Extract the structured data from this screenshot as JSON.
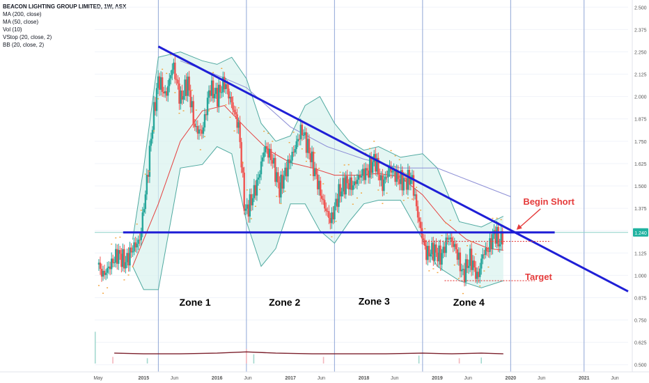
{
  "chart_data": {
    "type": "candlestick",
    "title": "BEACON LIGHTING GROUP LIMITED, 1W, ASX",
    "indicators": [
      "MA (200, close)",
      "MA (50, close)",
      "Vol (10)",
      "VStop (20, close, 2)",
      "BB (20, close, 2)"
    ],
    "y_axis": {
      "ticks": [
        "2.500",
        "2.375",
        "2.250",
        "2.125",
        "2.000",
        "1.875",
        "1.750",
        "1.625",
        "1.500",
        "1.375",
        "1.250",
        "1.125",
        "1.000",
        "0.875",
        "0.750",
        "0.625",
        "0.500"
      ],
      "range": [
        0.46,
        2.54
      ]
    },
    "x_axis": {
      "ticks": [
        "May",
        "2015",
        "Jun",
        "2016",
        "Jun",
        "2017",
        "Jun",
        "2018",
        "Jun",
        "2019",
        "Jun",
        "2020",
        "Jun",
        "2021",
        "Jun"
      ],
      "range": [
        2014.333,
        2021.6
      ]
    },
    "price_marker": {
      "value": 1.24,
      "label": "1.240"
    },
    "price_series": [
      {
        "t": 2014.37,
        "v": 1.06
      },
      {
        "t": 2014.45,
        "v": 1.0
      },
      {
        "t": 2014.55,
        "v": 1.06
      },
      {
        "t": 2014.65,
        "v": 1.12
      },
      {
        "t": 2014.75,
        "v": 1.07
      },
      {
        "t": 2014.85,
        "v": 1.15
      },
      {
        "t": 2014.95,
        "v": 1.2
      },
      {
        "t": 2015.05,
        "v": 1.55
      },
      {
        "t": 2015.12,
        "v": 1.85
      },
      {
        "t": 2015.2,
        "v": 2.1
      },
      {
        "t": 2015.3,
        "v": 2.0
      },
      {
        "t": 2015.4,
        "v": 2.18
      },
      {
        "t": 2015.5,
        "v": 1.98
      },
      {
        "t": 2015.6,
        "v": 2.08
      },
      {
        "t": 2015.7,
        "v": 1.82
      },
      {
        "t": 2015.8,
        "v": 1.8
      },
      {
        "t": 2015.9,
        "v": 2.05
      },
      {
        "t": 2016.0,
        "v": 2.0
      },
      {
        "t": 2016.1,
        "v": 2.08
      },
      {
        "t": 2016.2,
        "v": 1.96
      },
      {
        "t": 2016.3,
        "v": 1.82
      },
      {
        "t": 2016.38,
        "v": 1.35
      },
      {
        "t": 2016.45,
        "v": 1.4
      },
      {
        "t": 2016.55,
        "v": 1.52
      },
      {
        "t": 2016.65,
        "v": 1.72
      },
      {
        "t": 2016.75,
        "v": 1.65
      },
      {
        "t": 2016.85,
        "v": 1.48
      },
      {
        "t": 2016.95,
        "v": 1.6
      },
      {
        "t": 2017.05,
        "v": 1.7
      },
      {
        "t": 2017.15,
        "v": 1.82
      },
      {
        "t": 2017.25,
        "v": 1.7
      },
      {
        "t": 2017.35,
        "v": 1.55
      },
      {
        "t": 2017.45,
        "v": 1.4
      },
      {
        "t": 2017.55,
        "v": 1.3
      },
      {
        "t": 2017.65,
        "v": 1.45
      },
      {
        "t": 2017.75,
        "v": 1.52
      },
      {
        "t": 2017.85,
        "v": 1.5
      },
      {
        "t": 2017.95,
        "v": 1.56
      },
      {
        "t": 2018.05,
        "v": 1.58
      },
      {
        "t": 2018.15,
        "v": 1.65
      },
      {
        "t": 2018.25,
        "v": 1.5
      },
      {
        "t": 2018.35,
        "v": 1.6
      },
      {
        "t": 2018.45,
        "v": 1.55
      },
      {
        "t": 2018.55,
        "v": 1.52
      },
      {
        "t": 2018.65,
        "v": 1.55
      },
      {
        "t": 2018.75,
        "v": 1.3
      },
      {
        "t": 2018.85,
        "v": 1.12
      },
      {
        "t": 2018.95,
        "v": 1.14
      },
      {
        "t": 2019.05,
        "v": 1.1
      },
      {
        "t": 2019.15,
        "v": 1.22
      },
      {
        "t": 2019.25,
        "v": 1.15
      },
      {
        "t": 2019.35,
        "v": 1.0
      },
      {
        "t": 2019.45,
        "v": 1.1
      },
      {
        "t": 2019.55,
        "v": 0.98
      },
      {
        "t": 2019.62,
        "v": 1.12
      },
      {
        "t": 2019.7,
        "v": 1.15
      },
      {
        "t": 2019.78,
        "v": 1.24
      },
      {
        "t": 2019.85,
        "v": 1.18
      },
      {
        "t": 2019.9,
        "v": 1.24
      }
    ],
    "bollinger_upper": [
      {
        "t": 2014.85,
        "v": 1.2
      },
      {
        "t": 2015.0,
        "v": 1.6
      },
      {
        "t": 2015.2,
        "v": 2.22
      },
      {
        "t": 2015.5,
        "v": 2.25
      },
      {
        "t": 2015.8,
        "v": 2.2
      },
      {
        "t": 2016.0,
        "v": 2.18
      },
      {
        "t": 2016.2,
        "v": 2.22
      },
      {
        "t": 2016.4,
        "v": 2.1
      },
      {
        "t": 2016.6,
        "v": 1.85
      },
      {
        "t": 2016.8,
        "v": 1.75
      },
      {
        "t": 2017.0,
        "v": 1.78
      },
      {
        "t": 2017.2,
        "v": 1.95
      },
      {
        "t": 2017.4,
        "v": 2.0
      },
      {
        "t": 2017.6,
        "v": 1.85
      },
      {
        "t": 2017.8,
        "v": 1.75
      },
      {
        "t": 2018.0,
        "v": 1.7
      },
      {
        "t": 2018.2,
        "v": 1.72
      },
      {
        "t": 2018.5,
        "v": 1.66
      },
      {
        "t": 2018.8,
        "v": 1.68
      },
      {
        "t": 2019.0,
        "v": 1.6
      },
      {
        "t": 2019.3,
        "v": 1.3
      },
      {
        "t": 2019.6,
        "v": 1.27
      },
      {
        "t": 2019.9,
        "v": 1.33
      }
    ],
    "bollinger_lower": [
      {
        "t": 2014.85,
        "v": 1.05
      },
      {
        "t": 2015.0,
        "v": 0.92
      },
      {
        "t": 2015.2,
        "v": 0.92
      },
      {
        "t": 2015.5,
        "v": 1.6
      },
      {
        "t": 2015.8,
        "v": 1.62
      },
      {
        "t": 2016.0,
        "v": 1.72
      },
      {
        "t": 2016.2,
        "v": 1.68
      },
      {
        "t": 2016.4,
        "v": 1.3
      },
      {
        "t": 2016.6,
        "v": 1.05
      },
      {
        "t": 2016.8,
        "v": 1.15
      },
      {
        "t": 2017.0,
        "v": 1.4
      },
      {
        "t": 2017.2,
        "v": 1.4
      },
      {
        "t": 2017.4,
        "v": 1.25
      },
      {
        "t": 2017.6,
        "v": 1.18
      },
      {
        "t": 2017.8,
        "v": 1.3
      },
      {
        "t": 2018.0,
        "v": 1.4
      },
      {
        "t": 2018.2,
        "v": 1.42
      },
      {
        "t": 2018.5,
        "v": 1.42
      },
      {
        "t": 2018.8,
        "v": 1.2
      },
      {
        "t": 2019.0,
        "v": 1.05
      },
      {
        "t": 2019.3,
        "v": 0.97
      },
      {
        "t": 2019.6,
        "v": 0.93
      },
      {
        "t": 2019.9,
        "v": 0.97
      }
    ],
    "ma50": [
      {
        "t": 2014.85,
        "v": 1.05
      },
      {
        "t": 2015.2,
        "v": 1.4
      },
      {
        "t": 2015.5,
        "v": 1.75
      },
      {
        "t": 2015.8,
        "v": 1.92
      },
      {
        "t": 2016.1,
        "v": 1.95
      },
      {
        "t": 2016.4,
        "v": 1.82
      },
      {
        "t": 2016.7,
        "v": 1.7
      },
      {
        "t": 2017.0,
        "v": 1.63
      },
      {
        "t": 2017.3,
        "v": 1.6
      },
      {
        "t": 2017.6,
        "v": 1.56
      },
      {
        "t": 2017.9,
        "v": 1.56
      },
      {
        "t": 2018.2,
        "v": 1.57
      },
      {
        "t": 2018.5,
        "v": 1.55
      },
      {
        "t": 2018.8,
        "v": 1.45
      },
      {
        "t": 2019.1,
        "v": 1.3
      },
      {
        "t": 2019.4,
        "v": 1.2
      },
      {
        "t": 2019.7,
        "v": 1.15
      },
      {
        "t": 2019.9,
        "v": 1.14
      }
    ],
    "ma200": [
      {
        "t": 2015.5,
        "v": 2.2
      },
      {
        "t": 2016.0,
        "v": 2.12
      },
      {
        "t": 2016.4,
        "v": 2.05
      },
      {
        "t": 2017.0,
        "v": 1.83
      },
      {
        "t": 2017.5,
        "v": 1.72
      },
      {
        "t": 2018.0,
        "v": 1.65
      },
      {
        "t": 2018.5,
        "v": 1.6
      },
      {
        "t": 2019.0,
        "v": 1.6
      },
      {
        "t": 2019.5,
        "v": 1.52
      },
      {
        "t": 2020.0,
        "v": 1.44
      }
    ],
    "annotations": {
      "resistance_trendline": {
        "from": {
          "t": 2015.2,
          "v": 2.28
        },
        "to": {
          "t": 2021.6,
          "v": 0.91
        }
      },
      "support_line": {
        "from": {
          "t": 2014.72,
          "v": 1.24
        },
        "to": {
          "t": 2020.6,
          "v": 1.24
        }
      },
      "entry_line": {
        "from": {
          "t": 2018.8,
          "v": 1.19
        },
        "to": {
          "t": 2020.55,
          "v": 1.19
        }
      },
      "target_line": {
        "from": {
          "t": 2019.1,
          "v": 0.97
        },
        "to": {
          "t": 2020.33,
          "v": 0.97
        }
      },
      "zone_dividers": [
        2015.2,
        2016.4,
        2017.6,
        2018.8,
        2020.0,
        2021.0
      ],
      "zones": [
        {
          "label": "Zone 1",
          "t": 2015.7,
          "v": 0.83
        },
        {
          "label": "Zone 2",
          "t": 2016.92,
          "v": 0.83
        },
        {
          "label": "Zone 3",
          "t": 2018.14,
          "v": 0.835
        },
        {
          "label": "Zone 4",
          "t": 2019.43,
          "v": 0.83
        }
      ],
      "callouts": [
        {
          "label": "Begin Short",
          "t": 2020.52,
          "v": 1.395,
          "arrow_to": {
            "t": 2020.08,
            "v": 1.255
          }
        },
        {
          "label": "Target",
          "t": 2020.38,
          "v": 0.975
        }
      ]
    },
    "volume_spikes": [
      {
        "t": 2014.34,
        "v": 0.48
      },
      {
        "t": 2014.58,
        "v": 0.1
      },
      {
        "t": 2015.05,
        "v": 0.08
      },
      {
        "t": 2016.4,
        "v": 0.22
      },
      {
        "t": 2016.5,
        "v": 0.14
      },
      {
        "t": 2017.45,
        "v": 0.1
      },
      {
        "t": 2018.75,
        "v": 0.12
      },
      {
        "t": 2019.3,
        "v": 0.08
      },
      {
        "t": 2019.6,
        "v": 0.09
      }
    ],
    "volume_ma": [
      {
        "t": 2014.6,
        "v": 0.03
      },
      {
        "t": 2015.0,
        "v": 0.02
      },
      {
        "t": 2015.5,
        "v": 0.02
      },
      {
        "t": 2016.0,
        "v": 0.03
      },
      {
        "t": 2016.4,
        "v": 0.05
      },
      {
        "t": 2016.8,
        "v": 0.03
      },
      {
        "t": 2017.3,
        "v": 0.02
      },
      {
        "t": 2017.8,
        "v": 0.02
      },
      {
        "t": 2018.3,
        "v": 0.02
      },
      {
        "t": 2018.8,
        "v": 0.03
      },
      {
        "t": 2019.2,
        "v": 0.02
      },
      {
        "t": 2019.6,
        "v": 0.03
      },
      {
        "t": 2019.9,
        "v": 0.02
      }
    ],
    "colors": {
      "up": "#26a69a",
      "down": "#ef5350",
      "trend": "#1f1fd6",
      "band_fill": "#d9f2ee",
      "band_line": "#4fa9a0",
      "ma50": "#e5403f",
      "ma200": "#8d8fd6",
      "volume_ma": "#7b1f2b",
      "vstop": "#f2a33a",
      "callout": "#e53b3b",
      "divider": "#8fa6d6",
      "axis_text": "#555555"
    }
  }
}
